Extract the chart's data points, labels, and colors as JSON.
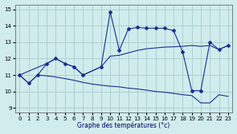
{
  "title": "Graphe des températures (°c)",
  "bg_color": "#d0ecec",
  "grid_color": "#a8cccc",
  "line_color": "#1a3090",
  "xlim": [
    -0.5,
    23.5
  ],
  "ylim": [
    8.7,
    15.3
  ],
  "xticks": [
    0,
    1,
    2,
    3,
    4,
    5,
    6,
    7,
    8,
    9,
    10,
    11,
    12,
    13,
    14,
    15,
    16,
    17,
    18,
    19,
    20,
    21,
    22,
    23
  ],
  "yticks": [
    9,
    10,
    11,
    12,
    13,
    14,
    15
  ],
  "line_main_x": [
    0,
    1,
    2,
    3,
    4,
    5,
    6,
    7,
    9,
    10,
    11,
    12,
    13,
    14,
    15,
    16,
    17,
    18,
    19,
    20,
    21,
    22,
    23
  ],
  "line_main_y": [
    11.0,
    10.5,
    11.0,
    11.7,
    12.0,
    11.7,
    11.5,
    11.0,
    11.5,
    14.85,
    12.5,
    13.8,
    13.9,
    13.85,
    13.85,
    13.85,
    13.7,
    12.4,
    10.05,
    10.05,
    13.0,
    12.55,
    12.8
  ],
  "line_upper_x": [
    0,
    3,
    4,
    5,
    6,
    7,
    9,
    10,
    11,
    12,
    13,
    14,
    15,
    16,
    17,
    18,
    19,
    20,
    21,
    22,
    23
  ],
  "line_upper_y": [
    11.0,
    11.7,
    12.0,
    11.7,
    11.5,
    11.0,
    11.5,
    12.15,
    12.2,
    12.35,
    12.5,
    12.6,
    12.65,
    12.7,
    12.72,
    12.75,
    12.8,
    12.75,
    12.8,
    12.55,
    12.8
  ],
  "line_lower_x": [
    0,
    1,
    2,
    3,
    4,
    5,
    6,
    7,
    8,
    9,
    10,
    11,
    12,
    13,
    14,
    15,
    16,
    17,
    18,
    19,
    20,
    21,
    22,
    23
  ],
  "line_lower_y": [
    11.0,
    10.5,
    11.0,
    10.95,
    10.88,
    10.78,
    10.68,
    10.55,
    10.45,
    10.38,
    10.32,
    10.28,
    10.2,
    10.15,
    10.08,
    10.0,
    9.95,
    9.88,
    9.8,
    9.75,
    9.3,
    9.3,
    9.8,
    9.7
  ]
}
